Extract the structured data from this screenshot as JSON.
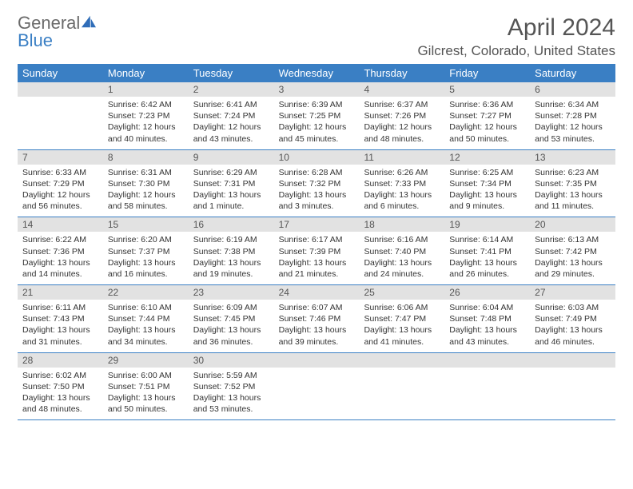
{
  "brand": {
    "part1": "General",
    "part2": "Blue"
  },
  "title": "April 2024",
  "location": "Gilcrest, Colorado, United States",
  "colors": {
    "header_bg": "#3a7fc4",
    "daynum_bg": "#e2e2e2",
    "rule": "#3a7fc4"
  },
  "weekdays": [
    "Sunday",
    "Monday",
    "Tuesday",
    "Wednesday",
    "Thursday",
    "Friday",
    "Saturday"
  ],
  "weeks": [
    [
      {
        "n": "",
        "sunrise": "",
        "sunset": "",
        "daylight": ""
      },
      {
        "n": "1",
        "sunrise": "Sunrise: 6:42 AM",
        "sunset": "Sunset: 7:23 PM",
        "daylight": "Daylight: 12 hours and 40 minutes."
      },
      {
        "n": "2",
        "sunrise": "Sunrise: 6:41 AM",
        "sunset": "Sunset: 7:24 PM",
        "daylight": "Daylight: 12 hours and 43 minutes."
      },
      {
        "n": "3",
        "sunrise": "Sunrise: 6:39 AM",
        "sunset": "Sunset: 7:25 PM",
        "daylight": "Daylight: 12 hours and 45 minutes."
      },
      {
        "n": "4",
        "sunrise": "Sunrise: 6:37 AM",
        "sunset": "Sunset: 7:26 PM",
        "daylight": "Daylight: 12 hours and 48 minutes."
      },
      {
        "n": "5",
        "sunrise": "Sunrise: 6:36 AM",
        "sunset": "Sunset: 7:27 PM",
        "daylight": "Daylight: 12 hours and 50 minutes."
      },
      {
        "n": "6",
        "sunrise": "Sunrise: 6:34 AM",
        "sunset": "Sunset: 7:28 PM",
        "daylight": "Daylight: 12 hours and 53 minutes."
      }
    ],
    [
      {
        "n": "7",
        "sunrise": "Sunrise: 6:33 AM",
        "sunset": "Sunset: 7:29 PM",
        "daylight": "Daylight: 12 hours and 56 minutes."
      },
      {
        "n": "8",
        "sunrise": "Sunrise: 6:31 AM",
        "sunset": "Sunset: 7:30 PM",
        "daylight": "Daylight: 12 hours and 58 minutes."
      },
      {
        "n": "9",
        "sunrise": "Sunrise: 6:29 AM",
        "sunset": "Sunset: 7:31 PM",
        "daylight": "Daylight: 13 hours and 1 minute."
      },
      {
        "n": "10",
        "sunrise": "Sunrise: 6:28 AM",
        "sunset": "Sunset: 7:32 PM",
        "daylight": "Daylight: 13 hours and 3 minutes."
      },
      {
        "n": "11",
        "sunrise": "Sunrise: 6:26 AM",
        "sunset": "Sunset: 7:33 PM",
        "daylight": "Daylight: 13 hours and 6 minutes."
      },
      {
        "n": "12",
        "sunrise": "Sunrise: 6:25 AM",
        "sunset": "Sunset: 7:34 PM",
        "daylight": "Daylight: 13 hours and 9 minutes."
      },
      {
        "n": "13",
        "sunrise": "Sunrise: 6:23 AM",
        "sunset": "Sunset: 7:35 PM",
        "daylight": "Daylight: 13 hours and 11 minutes."
      }
    ],
    [
      {
        "n": "14",
        "sunrise": "Sunrise: 6:22 AM",
        "sunset": "Sunset: 7:36 PM",
        "daylight": "Daylight: 13 hours and 14 minutes."
      },
      {
        "n": "15",
        "sunrise": "Sunrise: 6:20 AM",
        "sunset": "Sunset: 7:37 PM",
        "daylight": "Daylight: 13 hours and 16 minutes."
      },
      {
        "n": "16",
        "sunrise": "Sunrise: 6:19 AM",
        "sunset": "Sunset: 7:38 PM",
        "daylight": "Daylight: 13 hours and 19 minutes."
      },
      {
        "n": "17",
        "sunrise": "Sunrise: 6:17 AM",
        "sunset": "Sunset: 7:39 PM",
        "daylight": "Daylight: 13 hours and 21 minutes."
      },
      {
        "n": "18",
        "sunrise": "Sunrise: 6:16 AM",
        "sunset": "Sunset: 7:40 PM",
        "daylight": "Daylight: 13 hours and 24 minutes."
      },
      {
        "n": "19",
        "sunrise": "Sunrise: 6:14 AM",
        "sunset": "Sunset: 7:41 PM",
        "daylight": "Daylight: 13 hours and 26 minutes."
      },
      {
        "n": "20",
        "sunrise": "Sunrise: 6:13 AM",
        "sunset": "Sunset: 7:42 PM",
        "daylight": "Daylight: 13 hours and 29 minutes."
      }
    ],
    [
      {
        "n": "21",
        "sunrise": "Sunrise: 6:11 AM",
        "sunset": "Sunset: 7:43 PM",
        "daylight": "Daylight: 13 hours and 31 minutes."
      },
      {
        "n": "22",
        "sunrise": "Sunrise: 6:10 AM",
        "sunset": "Sunset: 7:44 PM",
        "daylight": "Daylight: 13 hours and 34 minutes."
      },
      {
        "n": "23",
        "sunrise": "Sunrise: 6:09 AM",
        "sunset": "Sunset: 7:45 PM",
        "daylight": "Daylight: 13 hours and 36 minutes."
      },
      {
        "n": "24",
        "sunrise": "Sunrise: 6:07 AM",
        "sunset": "Sunset: 7:46 PM",
        "daylight": "Daylight: 13 hours and 39 minutes."
      },
      {
        "n": "25",
        "sunrise": "Sunrise: 6:06 AM",
        "sunset": "Sunset: 7:47 PM",
        "daylight": "Daylight: 13 hours and 41 minutes."
      },
      {
        "n": "26",
        "sunrise": "Sunrise: 6:04 AM",
        "sunset": "Sunset: 7:48 PM",
        "daylight": "Daylight: 13 hours and 43 minutes."
      },
      {
        "n": "27",
        "sunrise": "Sunrise: 6:03 AM",
        "sunset": "Sunset: 7:49 PM",
        "daylight": "Daylight: 13 hours and 46 minutes."
      }
    ],
    [
      {
        "n": "28",
        "sunrise": "Sunrise: 6:02 AM",
        "sunset": "Sunset: 7:50 PM",
        "daylight": "Daylight: 13 hours and 48 minutes."
      },
      {
        "n": "29",
        "sunrise": "Sunrise: 6:00 AM",
        "sunset": "Sunset: 7:51 PM",
        "daylight": "Daylight: 13 hours and 50 minutes."
      },
      {
        "n": "30",
        "sunrise": "Sunrise: 5:59 AM",
        "sunset": "Sunset: 7:52 PM",
        "daylight": "Daylight: 13 hours and 53 minutes."
      },
      {
        "n": "",
        "sunrise": "",
        "sunset": "",
        "daylight": ""
      },
      {
        "n": "",
        "sunrise": "",
        "sunset": "",
        "daylight": ""
      },
      {
        "n": "",
        "sunrise": "",
        "sunset": "",
        "daylight": ""
      },
      {
        "n": "",
        "sunrise": "",
        "sunset": "",
        "daylight": ""
      }
    ]
  ]
}
